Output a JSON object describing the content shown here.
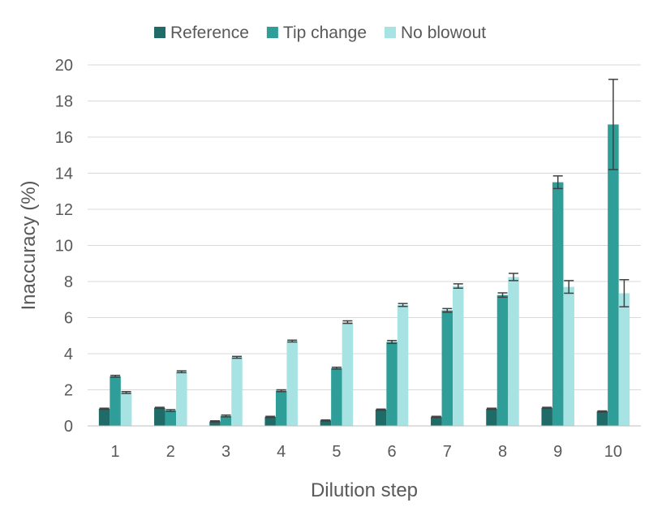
{
  "chart_data": {
    "type": "bar",
    "title": "",
    "xlabel": "Dilution step",
    "ylabel": "Inaccuracy (%)",
    "categories": [
      "1",
      "2",
      "3",
      "4",
      "5",
      "6",
      "7",
      "8",
      "9",
      "10"
    ],
    "ylim": [
      0,
      20
    ],
    "yticks": [
      0,
      2,
      4,
      6,
      8,
      10,
      12,
      14,
      16,
      18,
      20
    ],
    "grid": true,
    "legend_position": "top",
    "series": [
      {
        "name": "Reference",
        "color": "#1f6b67",
        "values": [
          0.95,
          1.0,
          0.25,
          0.5,
          0.3,
          0.9,
          0.5,
          0.95,
          1.0,
          0.8
        ],
        "errors": [
          0.03,
          0.03,
          0.03,
          0.03,
          0.03,
          0.03,
          0.03,
          0.03,
          0.03,
          0.03
        ]
      },
      {
        "name": "Tip change",
        "color": "#2f9e99",
        "values": [
          2.75,
          0.85,
          0.55,
          1.95,
          3.2,
          4.65,
          6.4,
          7.25,
          13.5,
          16.7
        ],
        "errors": [
          0.05,
          0.05,
          0.05,
          0.05,
          0.05,
          0.08,
          0.1,
          0.12,
          0.35,
          2.5
        ]
      },
      {
        "name": "No blowout",
        "color": "#a7e3e3",
        "values": [
          1.85,
          3.0,
          3.8,
          4.7,
          5.75,
          6.7,
          7.75,
          8.25,
          7.7,
          7.35
        ],
        "errors": [
          0.05,
          0.05,
          0.05,
          0.05,
          0.07,
          0.08,
          0.12,
          0.2,
          0.35,
          0.75
        ]
      }
    ]
  }
}
